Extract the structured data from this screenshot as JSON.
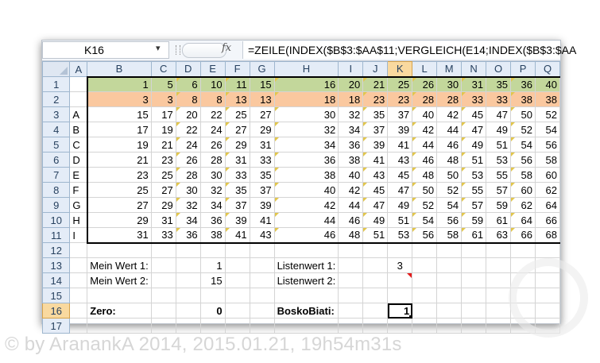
{
  "formula_bar": {
    "name_box": "K16",
    "name_box_arrow": "▾",
    "fx_label": "fx",
    "formula": "=ZEILE(INDEX($B$3:$AA$11;VERGLEICH(E14;INDEX($B$3:$AA"
  },
  "columns": [
    "A",
    "B",
    "C",
    "D",
    "E",
    "F",
    "G",
    "H",
    "I",
    "J",
    "K",
    "L",
    "M",
    "N",
    "O",
    "P",
    "Q"
  ],
  "selected_column": "K",
  "selected_row": 16,
  "rows": [
    {
      "n": "1",
      "cells": [
        "",
        "1",
        "5",
        "6",
        "10",
        "11",
        "15",
        "16",
        "20",
        "21",
        "25",
        "26",
        "30",
        "31",
        "35",
        "36",
        "40"
      ]
    },
    {
      "n": "2",
      "cells": [
        "",
        "3",
        "3",
        "8",
        "8",
        "13",
        "13",
        "18",
        "18",
        "23",
        "23",
        "28",
        "28",
        "33",
        "33",
        "38",
        "38"
      ]
    },
    {
      "n": "3",
      "cells": [
        "A",
        "15",
        "17",
        "20",
        "22",
        "25",
        "27",
        "30",
        "32",
        "35",
        "37",
        "40",
        "42",
        "45",
        "47",
        "50",
        "52"
      ]
    },
    {
      "n": "4",
      "cells": [
        "B",
        "17",
        "19",
        "22",
        "24",
        "27",
        "29",
        "32",
        "34",
        "37",
        "39",
        "42",
        "44",
        "47",
        "49",
        "52",
        "54"
      ]
    },
    {
      "n": "5",
      "cells": [
        "C",
        "19",
        "21",
        "24",
        "26",
        "29",
        "31",
        "34",
        "36",
        "39",
        "41",
        "44",
        "46",
        "49",
        "51",
        "54",
        "56"
      ]
    },
    {
      "n": "6",
      "cells": [
        "D",
        "21",
        "23",
        "26",
        "28",
        "31",
        "33",
        "36",
        "38",
        "41",
        "43",
        "46",
        "48",
        "51",
        "53",
        "56",
        "58"
      ]
    },
    {
      "n": "7",
      "cells": [
        "E",
        "23",
        "25",
        "28",
        "30",
        "33",
        "35",
        "38",
        "40",
        "43",
        "45",
        "48",
        "50",
        "53",
        "55",
        "58",
        "60"
      ]
    },
    {
      "n": "8",
      "cells": [
        "F",
        "25",
        "27",
        "30",
        "32",
        "35",
        "37",
        "40",
        "42",
        "45",
        "47",
        "50",
        "52",
        "55",
        "57",
        "60",
        "62"
      ]
    },
    {
      "n": "9",
      "cells": [
        "G",
        "27",
        "29",
        "32",
        "34",
        "37",
        "39",
        "42",
        "44",
        "47",
        "49",
        "52",
        "54",
        "57",
        "59",
        "62",
        "64"
      ]
    },
    {
      "n": "10",
      "cells": [
        "H",
        "29",
        "31",
        "34",
        "36",
        "39",
        "41",
        "44",
        "46",
        "49",
        "51",
        "54",
        "56",
        "59",
        "61",
        "64",
        "66"
      ]
    },
    {
      "n": "11",
      "cells": [
        "I",
        "31",
        "33",
        "36",
        "38",
        "41",
        "43",
        "46",
        "48",
        "51",
        "53",
        "56",
        "58",
        "61",
        "63",
        "66",
        "68"
      ]
    },
    {
      "n": "12",
      "cells": [
        "",
        "",
        "",
        "",
        "",
        "",
        "",
        "",
        "",
        "",
        "",
        "",
        "",
        "",
        "",
        "",
        ""
      ]
    },
    {
      "n": "13",
      "cells": [
        "",
        "Mein Wert 1:",
        "",
        "",
        "1",
        "",
        "",
        "Listenwert 1:",
        "",
        "",
        "3",
        "",
        "",
        "",
        "",
        "",
        ""
      ]
    },
    {
      "n": "14",
      "cells": [
        "",
        "Mein Wert 2:",
        "",
        "",
        "15",
        "",
        "",
        "Listenwert 2:",
        "",
        "",
        "",
        "",
        "",
        "",
        "",
        "",
        ""
      ]
    },
    {
      "n": "15",
      "cells": [
        "",
        "",
        "",
        "",
        "",
        "",
        "",
        "",
        "",
        "",
        "",
        "",
        "",
        "",
        "",
        "",
        ""
      ]
    },
    {
      "n": "16",
      "cells": [
        "",
        "Zero:",
        "",
        "",
        "0",
        "",
        "",
        "BoskoBiati:",
        "",
        "",
        "1",
        "",
        "",
        "",
        "",
        "",
        ""
      ]
    },
    {
      "n": "17",
      "cells": [
        "",
        "",
        "",
        "",
        "",
        "",
        "",
        "",
        "",
        "",
        "",
        "",
        "",
        "",
        "",
        "",
        ""
      ]
    }
  ],
  "watermark": "© by AranankA 2014, 2015.01.21, 19h54m31s",
  "colors": {
    "row1_fill": "#c3d79b",
    "row2_fill": "#fac89f",
    "selected_header": "#f9d99f",
    "comment_marker": "#e31b1b"
  }
}
